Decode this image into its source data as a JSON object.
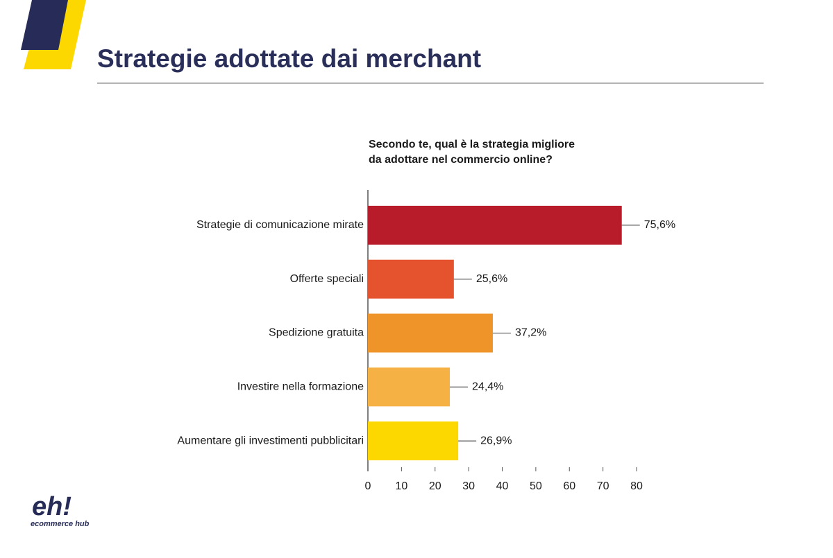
{
  "chart_data": {
    "type": "bar",
    "orientation": "horizontal",
    "title": "Strategie adottate dai merchant",
    "subtitle": [
      "Secondo te, qual è la strategia migliore",
      "da adottare nel commercio online?"
    ],
    "categories": [
      "Strategie di comunicazione mirate",
      "Offerte speciali",
      "Spedizione gratuita",
      "Investire nella formazione",
      "Aumentare gli investimenti pubblicitari"
    ],
    "values": [
      75.6,
      25.6,
      37.2,
      24.4,
      26.9
    ],
    "value_labels": [
      "75,6%",
      "25,6%",
      "37,2%",
      "24,4%",
      "26,9%"
    ],
    "colors": [
      "#b81c2b",
      "#e4532e",
      "#ef9428",
      "#f5b143",
      "#fdd800"
    ],
    "xlim": [
      0,
      80
    ],
    "xticks": [
      0,
      10,
      20,
      30,
      40,
      50,
      60,
      70,
      80
    ],
    "grid": false
  },
  "logo": {
    "mark": "eh!",
    "name": "ecommerce hub"
  }
}
